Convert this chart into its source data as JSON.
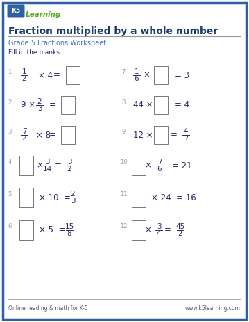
{
  "title": "Fraction multiplied by a whole number",
  "subtitle": "Grade 5 Fractions Worksheet",
  "instruction": "Fill in the blanks.",
  "border_color": "#2E5FA3",
  "title_color": "#1a3a6b",
  "subtitle_color": "#4472c4",
  "text_color": "#2a2a6a",
  "footer_left": "Online reading & math for K-5",
  "footer_right": "www.k5learning.com",
  "bg_color": "#ffffff",
  "line_color": "#999999",
  "box_edge_color": "#777777",
  "pnum_color": "#999999"
}
